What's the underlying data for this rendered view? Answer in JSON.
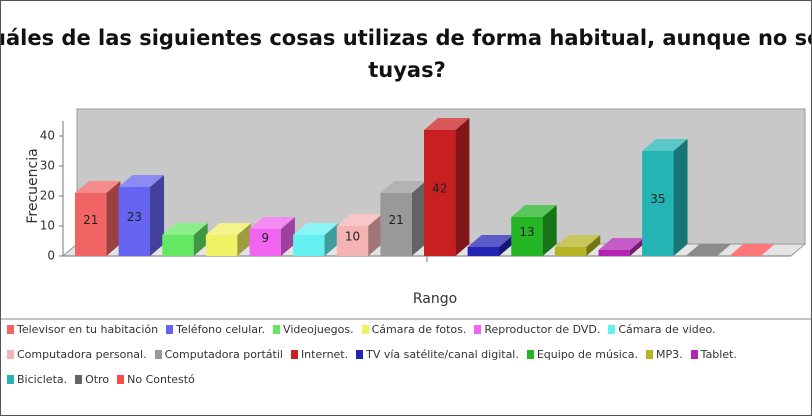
{
  "chart_data": {
    "type": "bar3d",
    "title": "¿Cuáles de las siguientes cosas utilizas de forma habitual, aunque no sean tuyas?",
    "x_label": "Rango",
    "y_label": "Frecuencia",
    "series": [
      {
        "name": "Televisor en tu habitación",
        "color": "#f06464",
        "values": [
          21
        ],
        "value_labels": [
          "21"
        ]
      },
      {
        "name": "Teléfono celular.",
        "color": "#6464f0",
        "values": [
          23
        ],
        "value_labels": [
          "23"
        ]
      },
      {
        "name": "Videojuegos.",
        "color": "#64e864",
        "values": [
          7
        ],
        "value_labels": [
          null
        ]
      },
      {
        "name": "Cámara de fotos.",
        "color": "#f0f064",
        "values": [
          7
        ],
        "value_labels": [
          null
        ]
      },
      {
        "name": "Reproductor de DVD.",
        "color": "#f064f0",
        "values": [
          9
        ],
        "value_labels": [
          "9"
        ]
      },
      {
        "name": "Cámara de video.",
        "color": "#64f0f0",
        "values": [
          7
        ],
        "value_labels": [
          null
        ]
      },
      {
        "name": "Computadora personal.",
        "color": "#f4b4b4",
        "values": [
          10
        ],
        "value_labels": [
          "10"
        ]
      },
      {
        "name": "Computadora portátil",
        "color": "#999999",
        "values": [
          21
        ],
        "value_labels": [
          "21"
        ]
      },
      {
        "name": "Internet.",
        "color": "#c82020",
        "values": [
          42
        ],
        "value_labels": [
          "42"
        ]
      },
      {
        "name": "TV vía satélite/canal digital.",
        "color": "#2424b4",
        "values": [
          3
        ],
        "value_labels": [
          null
        ]
      },
      {
        "name": "Equipo de música.",
        "color": "#24b424",
        "values": [
          13
        ],
        "value_labels": [
          "13"
        ]
      },
      {
        "name": "MP3.",
        "color": "#b4b424",
        "values": [
          3
        ],
        "value_labels": [
          null
        ]
      },
      {
        "name": "Tablet.",
        "color": "#b424b4",
        "values": [
          2
        ],
        "value_labels": [
          null
        ]
      },
      {
        "name": "Bicicleta.",
        "color": "#24b4b4",
        "values": [
          35
        ],
        "value_labels": [
          "35"
        ]
      },
      {
        "name": "Otro",
        "color": "#646464",
        "values": [
          0
        ],
        "value_labels": [
          null
        ]
      },
      {
        "name": "No Contestó",
        "color": "#ff4848",
        "values": [
          0
        ],
        "value_labels": [
          null
        ]
      }
    ],
    "ylim": [
      0,
      45
    ],
    "yticks": [
      0,
      10,
      20,
      30,
      40
    ]
  }
}
